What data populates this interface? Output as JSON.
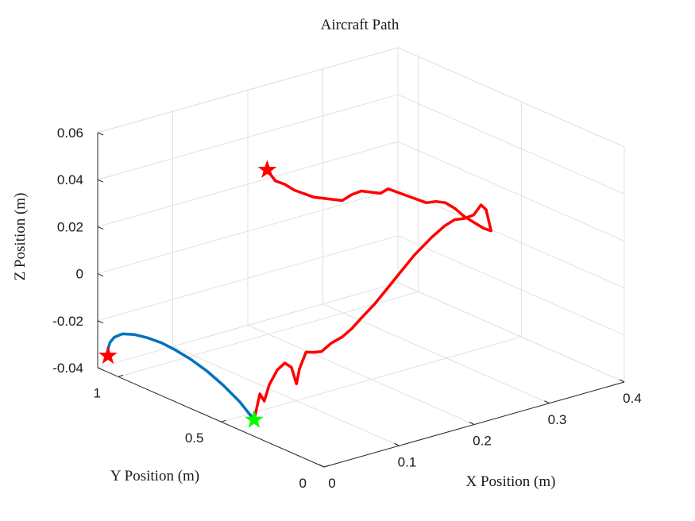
{
  "chart_data": {
    "type": "line",
    "title": "Aircraft Path",
    "xlabel": "X Position (m)",
    "ylabel": "Y Position (m)",
    "zlabel": "Z Position (m)",
    "xlim": [
      0,
      0.4
    ],
    "ylim": [
      0,
      1.1
    ],
    "zlim": [
      -0.04,
      0.06
    ],
    "x_ticks": [
      0,
      0.1,
      0.2,
      0.3,
      0.4
    ],
    "x_tick_labels": [
      "0",
      "0.1",
      "0.2",
      "0.3",
      "0.4"
    ],
    "y_ticks": [
      0,
      0.5,
      1
    ],
    "y_tick_labels": [
      "0",
      "0.5",
      "1"
    ],
    "z_ticks": [
      -0.04,
      -0.02,
      0,
      0.02,
      0.04,
      0.06
    ],
    "z_tick_labels": [
      "-0.04",
      "-0.02",
      "0",
      "0.02",
      "0.04",
      "0.06"
    ],
    "grid": true,
    "colors": {
      "blue": "#0072bd",
      "red": "#ff0000",
      "green": "#00ff00"
    },
    "series": [
      {
        "color": "#0072bd",
        "points": [
          [
            0,
            0.34,
            -0.033
          ],
          [
            0,
            0.41,
            -0.028
          ],
          [
            0,
            0.49,
            -0.024
          ],
          [
            0,
            0.57,
            -0.021
          ],
          [
            0,
            0.65,
            -0.019
          ],
          [
            0,
            0.72,
            -0.018
          ],
          [
            0,
            0.79,
            -0.0175
          ],
          [
            0,
            0.86,
            -0.018
          ],
          [
            0,
            0.92,
            -0.019
          ],
          [
            0,
            0.98,
            -0.021
          ],
          [
            0,
            1.02,
            -0.024
          ],
          [
            0,
            1.04,
            -0.027
          ],
          [
            0,
            1.05,
            -0.03
          ],
          [
            0,
            1.05,
            -0.033
          ]
        ]
      },
      {
        "color": "#ff0000",
        "points": [
          [
            0,
            0.34,
            -0.033
          ],
          [
            0.005,
            0.33,
            -0.022
          ],
          [
            0.008,
            0.32,
            -0.025
          ],
          [
            0.012,
            0.31,
            -0.018
          ],
          [
            0.02,
            0.3,
            -0.012
          ],
          [
            0.03,
            0.3,
            -0.01
          ],
          [
            0.036,
            0.29,
            -0.012
          ],
          [
            0.04,
            0.28,
            -0.019
          ],
          [
            0.044,
            0.28,
            -0.013
          ],
          [
            0.05,
            0.27,
            -0.006
          ],
          [
            0.06,
            0.27,
            -0.007
          ],
          [
            0.068,
            0.26,
            -0.007
          ],
          [
            0.078,
            0.25,
            -0.004
          ],
          [
            0.09,
            0.24,
            -0.002
          ],
          [
            0.1,
            0.23,
            0.001
          ],
          [
            0.11,
            0.22,
            0.005
          ],
          [
            0.125,
            0.21,
            0.01
          ],
          [
            0.14,
            0.2,
            0.016
          ],
          [
            0.155,
            0.19,
            0.022
          ],
          [
            0.17,
            0.18,
            0.028
          ],
          [
            0.19,
            0.17,
            0.034
          ],
          [
            0.205,
            0.16,
            0.038
          ],
          [
            0.215,
            0.15,
            0.04
          ],
          [
            0.225,
            0.14,
            0.04
          ],
          [
            0.235,
            0.13,
            0.041
          ],
          [
            0.242,
            0.12,
            0.045
          ],
          [
            0.246,
            0.11,
            0.043
          ],
          [
            0.25,
            0.1,
            0.034
          ],
          [
            0.24,
            0.1,
            0.036
          ],
          [
            0.23,
            0.11,
            0.039
          ],
          [
            0.22,
            0.12,
            0.042
          ],
          [
            0.21,
            0.13,
            0.046
          ],
          [
            0.2,
            0.14,
            0.049
          ],
          [
            0.19,
            0.15,
            0.05
          ],
          [
            0.18,
            0.16,
            0.05
          ],
          [
            0.17,
            0.17,
            0.052
          ],
          [
            0.16,
            0.18,
            0.054
          ],
          [
            0.15,
            0.19,
            0.056
          ],
          [
            0.14,
            0.2,
            0.058
          ],
          [
            0.13,
            0.2,
            0.057
          ],
          [
            0.12,
            0.21,
            0.058
          ],
          [
            0.11,
            0.22,
            0.059
          ],
          [
            0.1,
            0.23,
            0.058
          ],
          [
            0.09,
            0.24,
            0.056
          ],
          [
            0.08,
            0.25,
            0.057
          ],
          [
            0.07,
            0.26,
            0.058
          ],
          [
            0.06,
            0.27,
            0.059
          ],
          [
            0.05,
            0.28,
            0.061
          ],
          [
            0.04,
            0.29,
            0.063
          ],
          [
            0.03,
            0.3,
            0.066
          ],
          [
            0.02,
            0.31,
            0.068
          ],
          [
            0.012,
            0.32,
            0.073
          ]
        ]
      }
    ],
    "markers": [
      {
        "symbol": "star",
        "color": "#ff0000",
        "point": [
          0,
          1.05,
          -0.033
        ]
      },
      {
        "symbol": "star",
        "color": "#00ff00",
        "point": [
          0,
          0.34,
          -0.033
        ]
      },
      {
        "symbol": "star",
        "color": "#ff0000",
        "point": [
          0.012,
          0.32,
          0.073
        ]
      }
    ]
  }
}
